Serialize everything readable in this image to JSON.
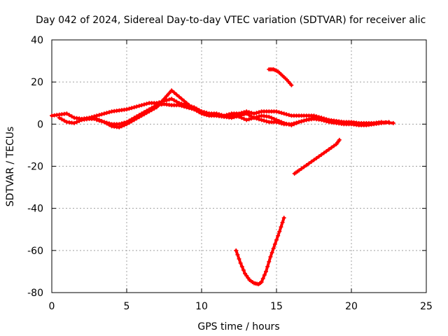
{
  "chart_data": {
    "type": "scatter",
    "title": "Day 042 of 2024, Sidereal Day-to-day VTEC variation (SDTVAR) for receiver alic",
    "xlabel": "GPS time / hours",
    "ylabel": "SDTVAR / TECUs",
    "xlim": [
      0,
      25
    ],
    "ylim": [
      -80,
      40
    ],
    "x_ticks": [
      0,
      5,
      10,
      15,
      20,
      25
    ],
    "y_ticks": [
      -80,
      -60,
      -40,
      -20,
      0,
      20,
      40
    ],
    "grid": true,
    "series_color": "#ff0000",
    "series": [
      {
        "x": [
          0,
          0.5,
          1,
          1.5,
          2,
          2.5,
          3,
          3.5,
          4,
          4.5,
          5,
          5.5,
          6,
          6.5,
          7,
          7.5,
          8,
          8.5,
          9,
          9.5,
          10,
          10.5,
          11,
          11.5,
          12,
          12.5,
          13,
          13.5,
          14,
          14.5,
          15,
          15.5,
          16,
          16.5,
          17,
          17.5,
          18,
          18.5,
          19,
          19.5,
          20,
          20.5,
          21,
          21.5,
          22,
          22.8
        ],
        "y": [
          4,
          4.5,
          5,
          3,
          2.5,
          3,
          4,
          5,
          6,
          6.5,
          7,
          8,
          9,
          10,
          10,
          11,
          12,
          10,
          9,
          8,
          6,
          5,
          5,
          4,
          5,
          5,
          6,
          5,
          6,
          6,
          6,
          5,
          4,
          4,
          4,
          4,
          3,
          2,
          1.5,
          1,
          1,
          0.5,
          0.5,
          0.5,
          1,
          0.5
        ]
      },
      {
        "x": [
          0.5,
          1,
          1.5,
          2,
          2.5,
          3,
          3.5,
          4,
          4.5,
          5,
          5.5,
          6,
          6.5,
          7,
          7.5,
          8,
          8.5,
          9,
          9.5,
          10,
          10.5,
          11,
          11.5,
          12,
          12.5,
          13,
          13.5,
          14,
          14.5,
          15,
          15.5,
          16,
          16.5,
          17,
          17.5,
          18,
          18.5,
          19,
          19.5,
          20,
          20.5,
          21,
          21.5,
          22,
          22.5
        ],
        "y": [
          3,
          1,
          0.5,
          2,
          2.5,
          2.5,
          1,
          -1,
          -1.5,
          0,
          2,
          4,
          6,
          8,
          12,
          16,
          13,
          10,
          7,
          6,
          5,
          4,
          3.5,
          4,
          3.5,
          2,
          3,
          4,
          3.5,
          2,
          0.5,
          -0.5,
          1,
          2,
          2.5,
          2,
          1,
          0.5,
          0,
          0,
          -0.5,
          -0.5,
          0,
          0.5,
          1
        ]
      },
      {
        "x": [
          3,
          3.5,
          4,
          4.5,
          5,
          5.5,
          6,
          6.5,
          7,
          7.5,
          8,
          8.5,
          9,
          9.5,
          10,
          10.5,
          11,
          11.5,
          12,
          12.5,
          13,
          13.5,
          14,
          14.5,
          15,
          15.5,
          16,
          16.5,
          17,
          17.5,
          18
        ],
        "y": [
          2,
          1,
          0,
          0,
          1,
          3,
          5,
          7,
          9,
          9.5,
          9,
          9,
          8,
          7,
          5,
          4,
          4,
          3.5,
          3,
          4,
          5,
          3,
          2,
          1,
          1,
          0,
          0,
          1,
          2,
          3,
          3
        ]
      },
      {
        "x": [
          14.5,
          14.8,
          15.1,
          15.4,
          15.7,
          16.0
        ],
        "y": [
          26,
          26,
          25,
          23,
          21,
          18.5
        ]
      },
      {
        "x": [
          16.2,
          16.5,
          17,
          17.5,
          18,
          18.5,
          19.0,
          19.2
        ],
        "y": [
          -23.5,
          -22,
          -19.5,
          -17,
          -14.5,
          -12,
          -9.5,
          -7.5
        ]
      },
      {
        "x": [
          12.3,
          12.6,
          12.9,
          13.2,
          13.5,
          13.8,
          14.0,
          14.3,
          14.6,
          14.9,
          15.2,
          15.5
        ],
        "y": [
          -60,
          -66,
          -71,
          -74,
          -75.5,
          -76,
          -75,
          -70,
          -63,
          -57,
          -51,
          -44.5
        ]
      }
    ]
  }
}
